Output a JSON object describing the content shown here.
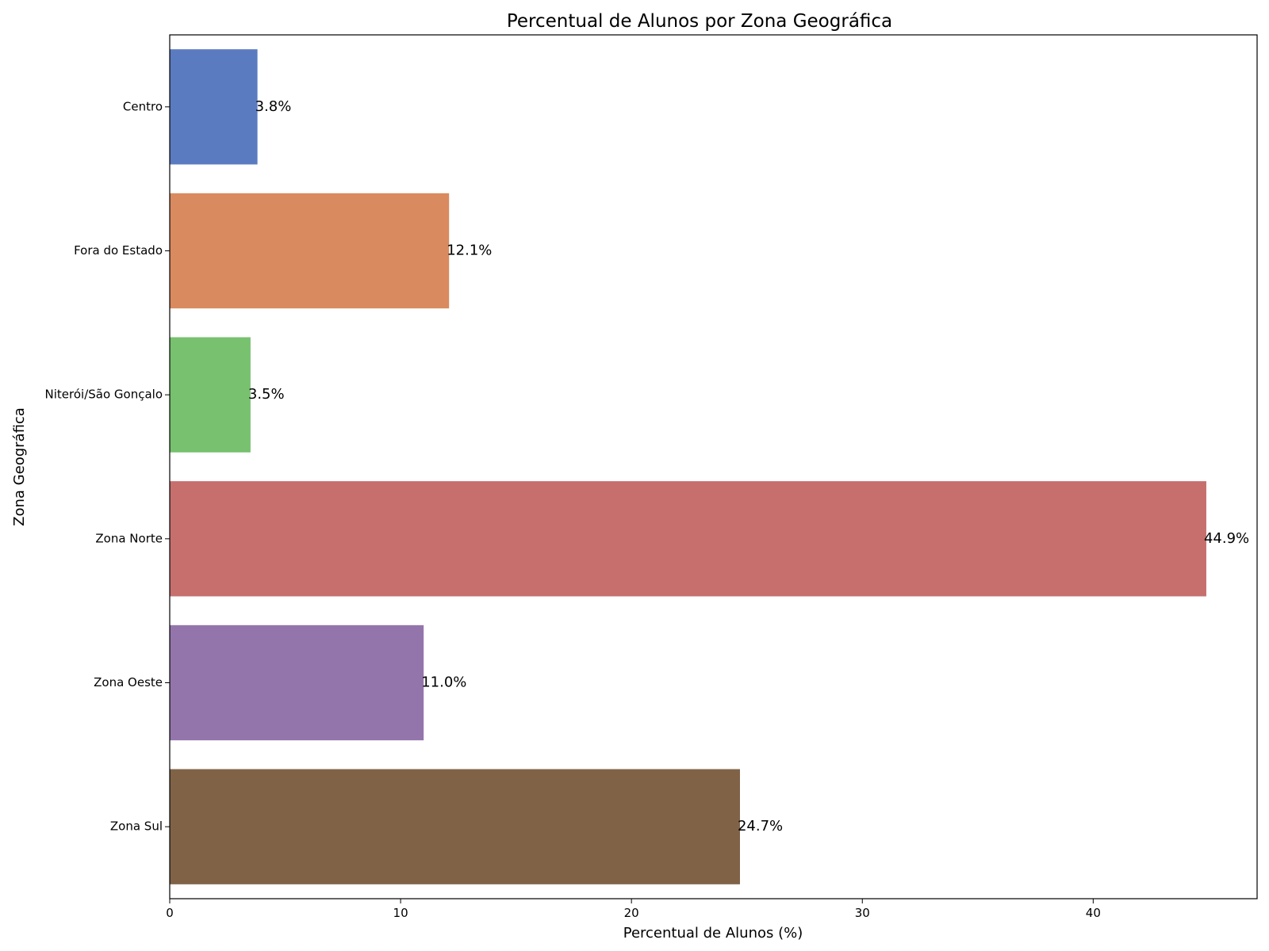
{
  "chart_data": {
    "type": "bar",
    "orientation": "horizontal",
    "title": "Percentual de Alunos por Zona Geográfica",
    "xlabel": "Percentual de Alunos (%)",
    "ylabel": "Zona Geográfica",
    "categories": [
      "Centro",
      "Fora do Estado",
      "Niterói/São Gonçalo",
      "Zona Norte",
      "Zona Oeste",
      "Zona Sul"
    ],
    "values": [
      3.8,
      12.1,
      3.5,
      44.9,
      11.0,
      24.7
    ],
    "data_labels": [
      "3.8%",
      "12.1%",
      "3.5%",
      "44.9%",
      "11.0%",
      "24.7%"
    ],
    "colors": [
      "#5b7bc1",
      "#d98a5e",
      "#77c16f",
      "#c66f6d",
      "#9375ab",
      "#806347"
    ],
    "xlim": [
      0,
      47.1
    ],
    "xticks": [
      0,
      10,
      20,
      30,
      40
    ],
    "xtick_labels": [
      "0",
      "10",
      "20",
      "30",
      "40"
    ],
    "grid": false,
    "legend": "none"
  }
}
